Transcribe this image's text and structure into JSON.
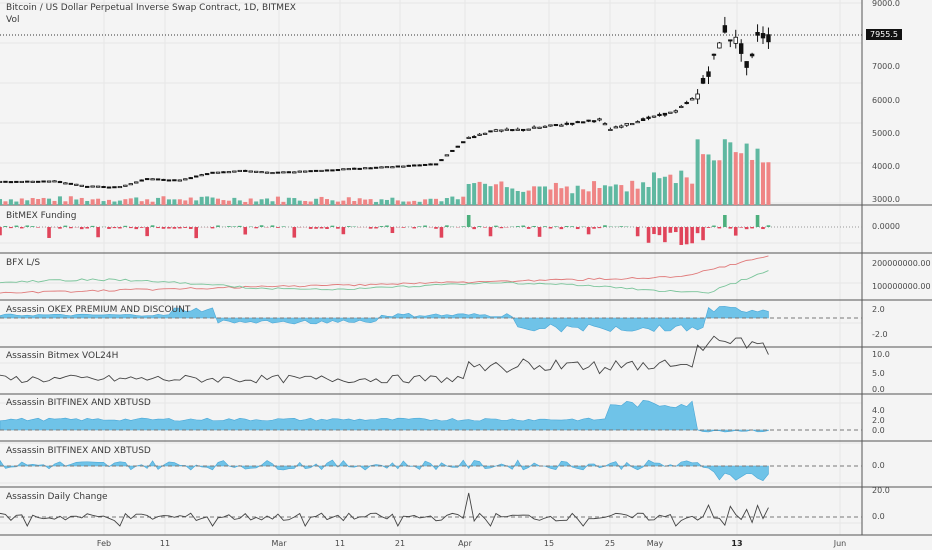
{
  "chart_title": "Bitcoin / US Dollar Perpetual Inverse Swap Contract, 1D, BITMEX",
  "vol_label": "Vol",
  "last_price": "7955.5",
  "price_axis": [
    "9000.0",
    "7000.0",
    "6000.0",
    "5000.0",
    "4000.0",
    "3000.0"
  ],
  "panes": {
    "funding": {
      "title": "BitMEX Funding",
      "labels": [
        "0.0000"
      ]
    },
    "bfx": {
      "title": "BFX L/S",
      "labels": [
        "200000000.00",
        "100000000.00"
      ]
    },
    "okex": {
      "title": "Assassin OKEX PREMIUM AND DISCOUNT",
      "labels": [
        "2.0",
        "-2.0"
      ]
    },
    "vol24": {
      "title": "Assassin Bitmex VOL24H",
      "labels": [
        "10.0",
        "5.0",
        "0.0"
      ]
    },
    "bfx_xbt1": {
      "title": "Assassin BITFINEX AND XBTUSD",
      "labels": [
        "4.0",
        "2.0",
        "0.0"
      ]
    },
    "bfx_xbt2": {
      "title": "Assassin BITFINEX AND XBTUSD",
      "labels": [
        "0.0"
      ]
    },
    "daily": {
      "title": "Assassin Daily Change",
      "labels": [
        "20.0",
        "0.0"
      ]
    }
  },
  "time_axis": [
    {
      "label": "Feb",
      "bold": false
    },
    {
      "label": "11",
      "bold": false
    },
    {
      "label": "Mar",
      "bold": false
    },
    {
      "label": "11",
      "bold": false
    },
    {
      "label": "21",
      "bold": false
    },
    {
      "label": "Apr",
      "bold": false
    },
    {
      "label": "15",
      "bold": false
    },
    {
      "label": "25",
      "bold": false
    },
    {
      "label": "May",
      "bold": false
    },
    {
      "label": "13",
      "bold": true
    },
    {
      "label": "Jun",
      "bold": false
    }
  ],
  "colors": {
    "up": "#5fb8a1",
    "down": "#ef8585",
    "funding_pos": "#4caf7d",
    "funding_neg": "#e0445a",
    "area_fill": "#6fc3e8",
    "line": "#444444",
    "bfx_red": "#e07a7a",
    "bfx_green": "#7ac49a"
  },
  "chart_data": {
    "type": "line",
    "title": "Bitcoin / US Dollar Perpetual Inverse Swap Contract, 1D, BITMEX",
    "last_price": 7955.5,
    "price_ylim": [
      2700,
      9200
    ],
    "price_path": [
      [
        "2019-01-21",
        3560
      ],
      [
        "2019-01-26",
        3580
      ],
      [
        "2019-02-01",
        3420
      ],
      [
        "2019-02-06",
        3400
      ],
      [
        "2019-02-08",
        3650
      ],
      [
        "2019-02-14",
        3600
      ],
      [
        "2019-02-18",
        3850
      ],
      [
        "2019-02-24",
        3900
      ],
      [
        "2019-03-01",
        3830
      ],
      [
        "2019-03-10",
        3900
      ],
      [
        "2019-03-20",
        4000
      ],
      [
        "2019-03-31",
        4100
      ],
      [
        "2019-04-02",
        4900
      ],
      [
        "2019-04-06",
        5100
      ],
      [
        "2019-04-12",
        5150
      ],
      [
        "2019-04-20",
        5300
      ],
      [
        "2019-04-25",
        5450
      ],
      [
        "2019-04-26",
        5150
      ],
      [
        "2019-05-02",
        5450
      ],
      [
        "2019-05-06",
        5700
      ],
      [
        "2019-05-09",
        6200
      ],
      [
        "2019-05-11",
        7300
      ],
      [
        "2019-05-13",
        8200
      ],
      [
        "2019-05-14",
        7950
      ],
      [
        "2019-05-15",
        7850
      ],
      [
        "2019-05-16",
        7600
      ],
      [
        "2019-05-17",
        7050
      ],
      [
        "2019-05-18",
        7300
      ],
      [
        "2019-05-19",
        8100
      ],
      [
        "2019-05-20",
        7955.5
      ]
    ],
    "volume_profile": "low through March, rising in April, peaking around 13 May"
  }
}
